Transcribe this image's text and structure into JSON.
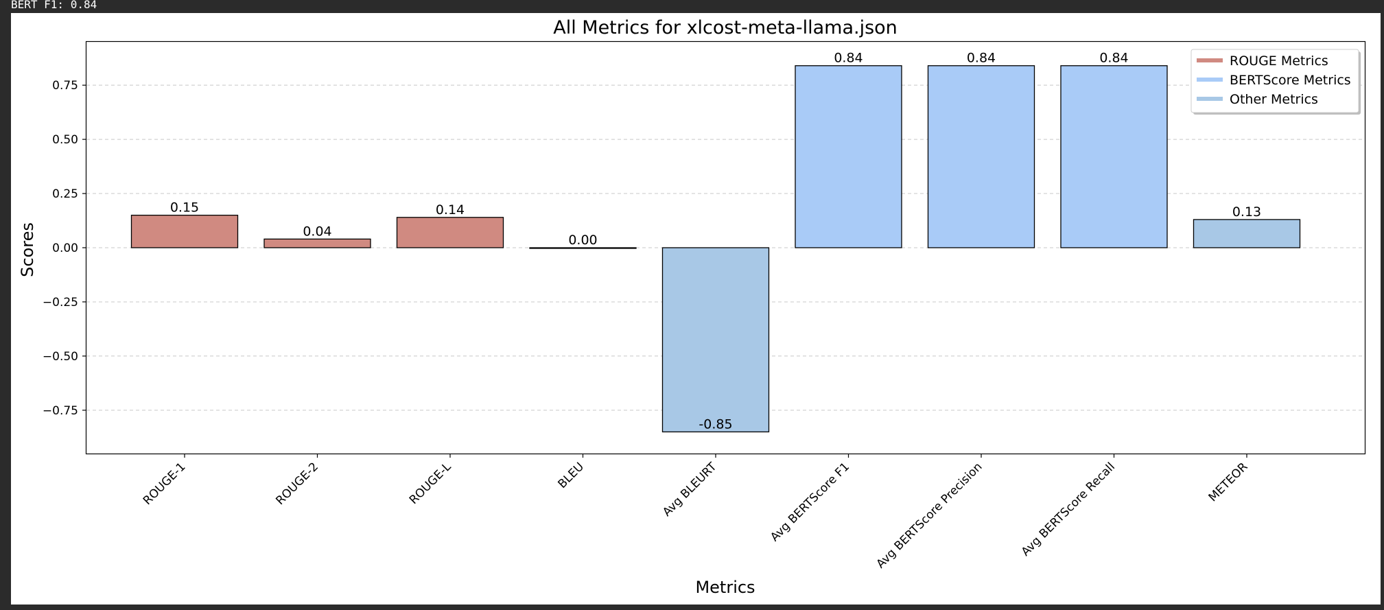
{
  "status_bar": {
    "text": "BERT F1: 0.84"
  },
  "chart_data": {
    "type": "bar",
    "title": "All Metrics for xlcost-meta-llama.json",
    "xlabel": "Metrics",
    "ylabel": "Scores",
    "ylim": [
      -0.95,
      0.95
    ],
    "yticks": [
      -0.75,
      -0.5,
      -0.25,
      0.0,
      0.25,
      0.5,
      0.75
    ],
    "ytick_labels": [
      "−0.75",
      "−0.50",
      "−0.25",
      "0.00",
      "0.25",
      "0.50",
      "0.75"
    ],
    "grid": "y-dashed",
    "legend_position": "top-right",
    "categories": [
      "ROUGE-1",
      "ROUGE-2",
      "ROUGE-L",
      "BLEU",
      "Avg BLEURT",
      "Avg BERTScore F1",
      "Avg BERTScore Precision",
      "Avg BERTScore Recall",
      "METEOR"
    ],
    "values": [
      0.15,
      0.04,
      0.14,
      0.0,
      -0.85,
      0.84,
      0.84,
      0.84,
      0.13
    ],
    "value_labels": [
      "0.15",
      "0.04",
      "0.14",
      "0.00",
      "-0.85",
      "0.84",
      "0.84",
      "0.84",
      "0.13"
    ],
    "groups": [
      "rouge",
      "rouge",
      "rouge",
      "other",
      "other",
      "bertscore",
      "bertscore",
      "bertscore",
      "other"
    ],
    "legend": [
      {
        "key": "rouge",
        "label": "ROUGE Metrics",
        "color": "#d08a81"
      },
      {
        "key": "bertscore",
        "label": "BERTScore Metrics",
        "color": "#a9cbf7"
      },
      {
        "key": "other",
        "label": "Other Metrics",
        "color": "#a8c8e6"
      }
    ]
  }
}
